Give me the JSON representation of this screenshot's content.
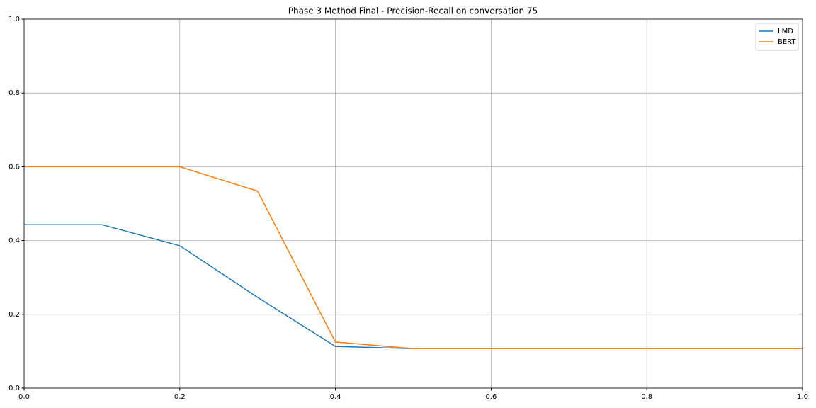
{
  "chart_data": {
    "type": "line",
    "title": "Phase 3 Method Final - Precision-Recall on conversation 75",
    "x": [
      0,
      0.1,
      0.2,
      0.3,
      0.4,
      0.5,
      0.6,
      0.7,
      0.8,
      0.9,
      1.0
    ],
    "series": [
      {
        "name": "LMD",
        "color": "#1f77b4",
        "values": [
          0.443,
          0.443,
          0.386,
          0.246,
          0.113,
          0.107,
          0.107,
          0.107,
          0.107,
          0.107,
          0.107
        ]
      },
      {
        "name": "BERT",
        "color": "#ff7f0e",
        "values": [
          0.6,
          0.6,
          0.6,
          0.534,
          0.125,
          0.107,
          0.107,
          0.107,
          0.107,
          0.107,
          0.107
        ]
      }
    ],
    "xlim": [
      0,
      1
    ],
    "ylim": [
      0,
      1
    ],
    "xticks": [
      {
        "value": 0,
        "label": "0.0"
      },
      0.2,
      0.4,
      0.6,
      0.8,
      {
        "value": 1,
        "label": "1.0"
      }
    ],
    "yticks": [
      {
        "value": 0,
        "label": "0.0"
      },
      0.2,
      0.4,
      0.6,
      0.8,
      {
        "value": 1,
        "label": "1.0"
      }
    ],
    "grid": true,
    "legend": "upper right"
  }
}
